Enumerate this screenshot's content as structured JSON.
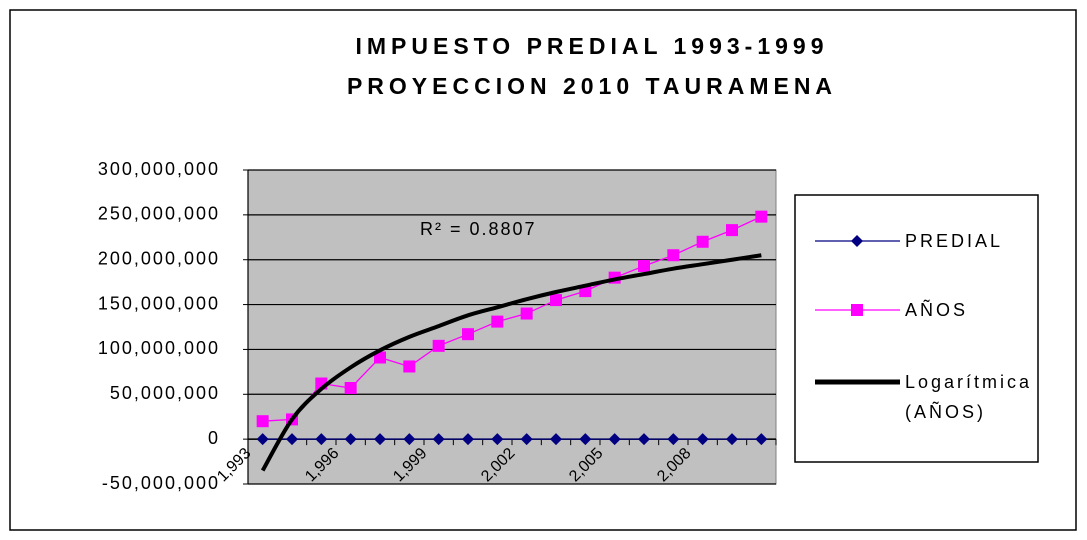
{
  "chart_data": {
    "type": "line",
    "title": "IMPUESTO PREDIAL 1993-1999",
    "subtitle": "PROYECCION 2010 TAURAMENA",
    "annotation": "R² = 0.8807",
    "categories": [
      "1,993",
      null,
      null,
      "1,996",
      null,
      null,
      "1,999",
      null,
      null,
      "2,002",
      null,
      null,
      "2,005",
      null,
      null,
      "2,008",
      null,
      null
    ],
    "series": [
      {
        "name": "PREDIAL",
        "color": "#000080",
        "marker": "diamond",
        "values": [
          0,
          0,
          0,
          0,
          0,
          0,
          0,
          0,
          0,
          0,
          0,
          0,
          0,
          0,
          0,
          0,
          0,
          0
        ]
      },
      {
        "name": "AÑOS",
        "color": "#ff00ff",
        "marker": "square",
        "values": [
          20000000,
          22000000,
          62000000,
          57000000,
          91000000,
          81000000,
          104000000,
          117000000,
          131000000,
          140000000,
          155000000,
          165000000,
          180000000,
          193000000,
          205000000,
          220000000,
          233000000,
          248000000
        ]
      },
      {
        "name": "Logarítmica (AÑOS)",
        "color": "#000000",
        "marker": "none",
        "values": [
          -35000000,
          22000000,
          56000000,
          80000000,
          99000000,
          114000000,
          126000000,
          138000000,
          147000000,
          156000000,
          164000000,
          171000000,
          178000000,
          184000000,
          190000000,
          195000000,
          200000000,
          205000000
        ]
      }
    ],
    "ylim": [
      -50000000,
      300000000
    ],
    "yticks": [
      {
        "value": -50000000,
        "label": "-50,000,000"
      },
      {
        "value": 0,
        "label": "0"
      },
      {
        "value": 50000000,
        "label": "50,000,000"
      },
      {
        "value": 100000000,
        "label": "100,000,000"
      },
      {
        "value": 150000000,
        "label": "150,000,000"
      },
      {
        "value": 200000000,
        "label": "200,000,000"
      },
      {
        "value": 250000000,
        "label": "250,000,000"
      },
      {
        "value": 300000000,
        "label": "300,000,000"
      }
    ],
    "grid": true,
    "plot_background": "#c0c0c0",
    "legend": "right"
  }
}
